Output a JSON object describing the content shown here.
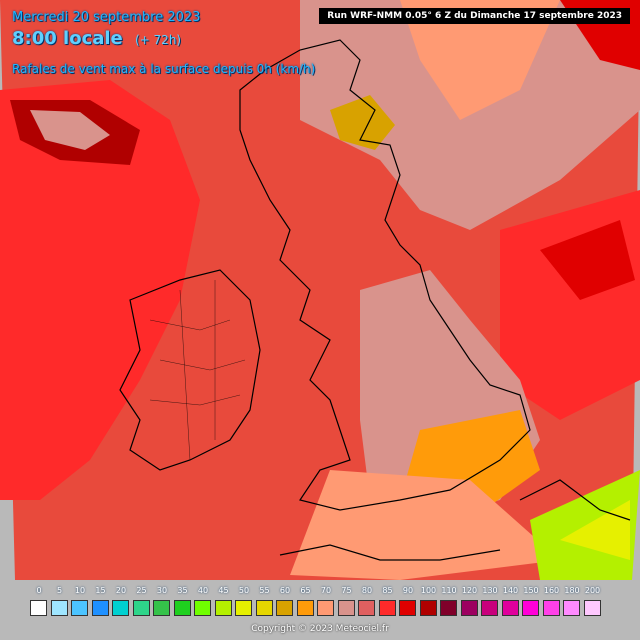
{
  "header": {
    "date_title": "Mercredi 20 septembre 2023",
    "time_label": "8:00 locale",
    "lead_label": "(+ 72h)",
    "param_title": "Rafales de vent max à la surface depuis 0h (km/h)",
    "run_label": "Run WRF-NMM 0.05° 6 Z du Dimanche 17 septembre 2023"
  },
  "legend": {
    "labels": [
      "0",
      "5",
      "10",
      "15",
      "20",
      "25",
      "30",
      "35",
      "40",
      "45",
      "50",
      "55",
      "60",
      "65",
      "70",
      "75",
      "80",
      "85",
      "90",
      "100",
      "110",
      "120",
      "130",
      "140",
      "150",
      "160",
      "180",
      "200"
    ],
    "colors": [
      "#ffffff",
      "#9fe6ff",
      "#4cc4ff",
      "#1e90ff",
      "#00d0d0",
      "#2ed58a",
      "#35c24a",
      "#1fd01f",
      "#70ff00",
      "#b4f000",
      "#e6f000",
      "#e6d600",
      "#d8a200",
      "#ff9b0a",
      "#ff9a73",
      "#d9938c",
      "#e06060",
      "#ff2a2a",
      "#e00000",
      "#b00000",
      "#80002a",
      "#9c0060",
      "#c8007c",
      "#e0009c",
      "#ff00d8",
      "#ff40e8",
      "#ff8aff",
      "#ffc8ff"
    ]
  },
  "footer": {
    "copyright": "Copyright © 2023 Meteociel.fr"
  }
}
